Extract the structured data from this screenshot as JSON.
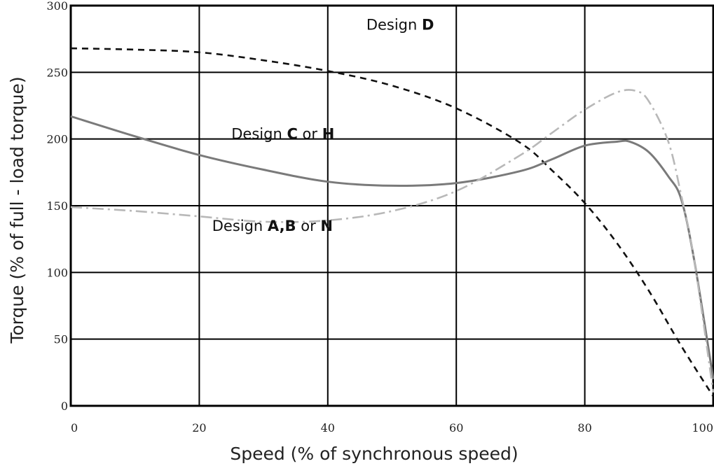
{
  "chart_data": {
    "type": "line",
    "xlabel": "Speed (% of synchronous speed)",
    "ylabel": "Torque (% of full - load torque)",
    "xlim": [
      0,
      100
    ],
    "ylim": [
      0,
      300
    ],
    "x_ticks": [
      0,
      20,
      40,
      60,
      80,
      100
    ],
    "y_ticks": [
      0,
      50,
      100,
      150,
      200,
      250,
      300
    ],
    "grid": true,
    "colors": {
      "design_d": "#111111",
      "design_c_h": "#7a7a7a",
      "design_abn": "#b8b8b8",
      "grid": "#000000"
    },
    "series": [
      {
        "name": "Design D",
        "style": "dashed",
        "x": [
          0,
          10,
          20,
          30,
          40,
          50,
          60,
          70,
          75,
          80,
          85,
          90,
          95,
          100
        ],
        "y": [
          268,
          267,
          265,
          259,
          251,
          240,
          223,
          197,
          176,
          152,
          122,
          86,
          45,
          7
        ]
      },
      {
        "name": "Design C or H",
        "style": "solid",
        "x": [
          0,
          10,
          20,
          30,
          40,
          50,
          60,
          70,
          75,
          80,
          85,
          87,
          90,
          93,
          95,
          97,
          100
        ],
        "y": [
          217,
          202,
          188,
          177,
          168,
          165,
          167,
          176,
          185,
          195,
          198,
          198,
          190,
          172,
          155,
          110,
          20
        ]
      },
      {
        "name": "Design A,B or N",
        "style": "dash-dot",
        "x": [
          0,
          10,
          20,
          30,
          40,
          50,
          60,
          70,
          75,
          80,
          85,
          88,
          90,
          93,
          95,
          97,
          100
        ],
        "y": [
          149,
          146,
          142,
          138,
          139,
          146,
          161,
          188,
          205,
          222,
          235,
          236,
          228,
          198,
          158,
          110,
          10
        ]
      }
    ],
    "annotations": [
      {
        "prefix": "Design ",
        "bold1": "D",
        "middle": "",
        "bold2": "",
        "x": 46,
        "y": 282
      },
      {
        "prefix": "Design ",
        "bold1": "C",
        "middle": " or ",
        "bold2": "H",
        "x": 25,
        "y": 200
      },
      {
        "prefix": "Design ",
        "bold1": "A,B",
        "middle": " or ",
        "bold2": "N",
        "x": 22,
        "y": 131
      }
    ]
  }
}
